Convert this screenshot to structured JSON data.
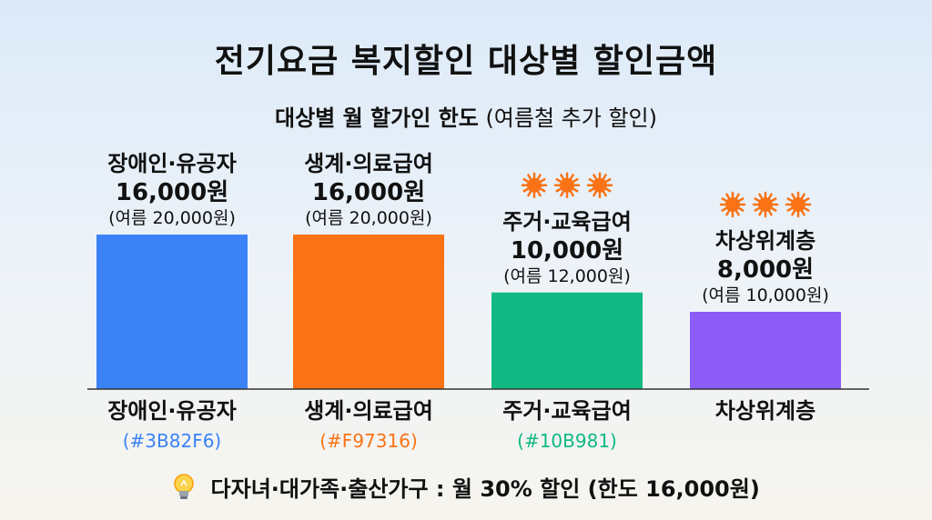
{
  "title": "전기요금 복지할인 대상별 할인금액",
  "subtitle": {
    "main": "대상별 월 할가인 한도",
    "note": "(여름철 추가 할인)"
  },
  "chart_data": {
    "type": "bar",
    "categories": [
      "장애인·유공자",
      "생계·의료급여",
      "주거·교육급여",
      "차상위계층"
    ],
    "values": [
      16000,
      16000,
      10000,
      8000
    ],
    "value_labels": [
      "16,000원",
      "16,000원",
      "10,000원",
      "8,000원"
    ],
    "summer_labels": [
      "(여름 20,000원)",
      "(여름 20,000원)",
      "(여름 12,000원)",
      "(여름 10,000원)"
    ],
    "summer_values": [
      20000,
      20000,
      12000,
      10000
    ],
    "colors": [
      "#3B82F6",
      "#F97316",
      "#10B981",
      "#8B5CF6"
    ],
    "color_codes": [
      "(#3B82F6)",
      "(#F97316)",
      "(#10B981)",
      ""
    ],
    "sun_icons": [
      0,
      0,
      3,
      3
    ],
    "ylim": [
      0,
      16000
    ],
    "grid": false,
    "xlabel": "",
    "ylabel": ""
  },
  "footnote": "다자녀·대가족·출산가구 : 월 30% 할인 (한도 16,000원)",
  "icons": {
    "footnote_icon": "lightbulb-icon",
    "summer_icon": "sun-icon"
  }
}
